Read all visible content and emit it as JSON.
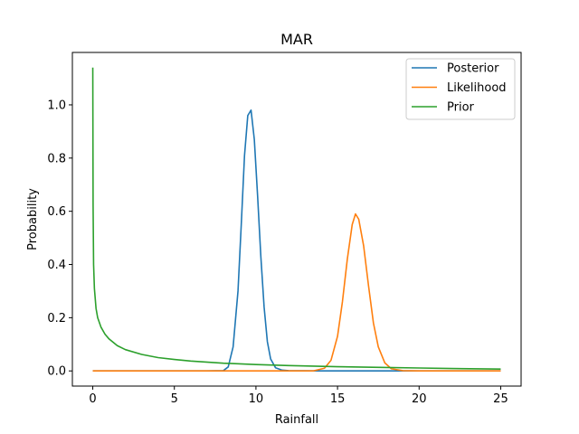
{
  "chart_data": {
    "type": "line",
    "title": "MAR",
    "xlabel": "Rainfall",
    "ylabel": "Probability",
    "xlim": [
      -1.25,
      26.25
    ],
    "ylim": [
      -0.057,
      1.197
    ],
    "xticks": [
      0,
      5,
      10,
      15,
      20,
      25
    ],
    "yticks": [
      0.0,
      0.2,
      0.4,
      0.6,
      0.8,
      1.0
    ],
    "xtick_labels": [
      "0",
      "5",
      "10",
      "15",
      "20",
      "25"
    ],
    "ytick_labels": [
      "0.0",
      "0.2",
      "0.4",
      "0.6",
      "0.8",
      "1.0"
    ],
    "grid": false,
    "legend_position": "top-right",
    "series": [
      {
        "name": "Posterior",
        "color": "#1f77b4",
        "x": [
          0,
          2,
          4,
          6,
          7,
          8,
          8.3,
          8.6,
          8.9,
          9.1,
          9.3,
          9.5,
          9.7,
          9.9,
          10.1,
          10.3,
          10.5,
          10.7,
          10.9,
          11.2,
          11.6,
          12,
          14,
          16,
          18,
          20,
          22,
          25
        ],
        "y": [
          0,
          0,
          0,
          0,
          0,
          0.001,
          0.015,
          0.09,
          0.3,
          0.55,
          0.81,
          0.96,
          0.98,
          0.87,
          0.66,
          0.43,
          0.24,
          0.11,
          0.045,
          0.012,
          0.003,
          0.001,
          0,
          0,
          0,
          0,
          0,
          0
        ]
      },
      {
        "name": "Likelihood",
        "color": "#ff7f0e",
        "x": [
          0,
          4,
          8,
          12,
          13.5,
          14.2,
          14.6,
          15.0,
          15.3,
          15.6,
          15.9,
          16.1,
          16.3,
          16.6,
          16.9,
          17.2,
          17.5,
          17.9,
          18.3,
          19,
          20,
          22,
          25
        ],
        "y": [
          0,
          0,
          0,
          0,
          0,
          0.01,
          0.04,
          0.13,
          0.26,
          0.42,
          0.55,
          0.59,
          0.57,
          0.47,
          0.32,
          0.18,
          0.09,
          0.03,
          0.008,
          0.001,
          0,
          0,
          0
        ]
      },
      {
        "name": "Prior",
        "color": "#2ca02c",
        "x": [
          0.001,
          0.02,
          0.05,
          0.1,
          0.2,
          0.3,
          0.5,
          0.75,
          1,
          1.5,
          2,
          3,
          4,
          5,
          6,
          8,
          10,
          12,
          15,
          18,
          20,
          22,
          25
        ],
        "y": [
          1.14,
          0.62,
          0.4,
          0.31,
          0.235,
          0.2,
          0.165,
          0.138,
          0.12,
          0.095,
          0.08,
          0.062,
          0.05,
          0.043,
          0.037,
          0.029,
          0.024,
          0.02,
          0.016,
          0.013,
          0.011,
          0.009,
          0.007
        ]
      }
    ]
  }
}
